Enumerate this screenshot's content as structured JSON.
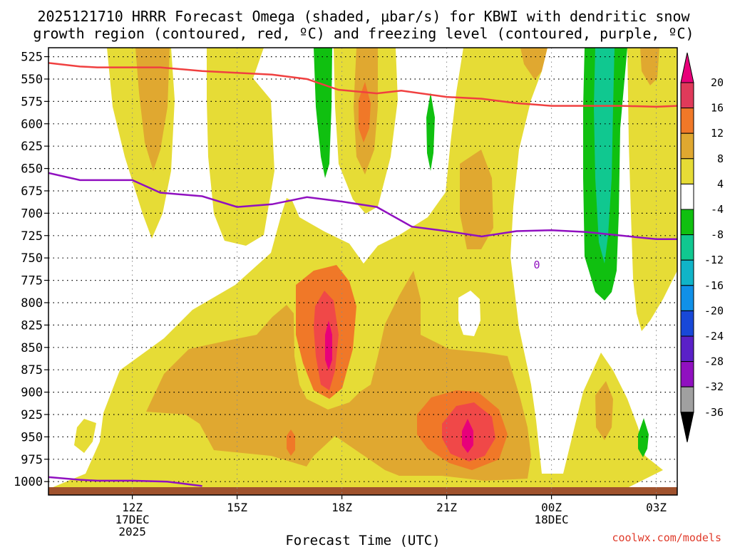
{
  "chart_data": {
    "type": "heatmap",
    "title_lines": [
      "2025121710 HRRR Forecast Omega (shaded, μbar/s) for KBWI with dendritic snow",
      "growth region (contoured, red, ºC) and freezing level (contoured, purple, ºC)"
    ],
    "xlabel": "Forecast Time (UTC)",
    "credit": "coolwx.com/models",
    "x_range_hours": [
      9.6,
      27.6
    ],
    "y_range_hpa": [
      515,
      1015
    ],
    "pressure_levels": [
      525,
      550,
      575,
      600,
      625,
      650,
      675,
      700,
      725,
      750,
      775,
      800,
      825,
      850,
      875,
      900,
      925,
      950,
      975,
      1000
    ],
    "x_ticks": [
      {
        "hour": 12,
        "lines": [
          "12Z",
          "17DEC",
          "2025"
        ]
      },
      {
        "hour": 15,
        "lines": [
          "15Z"
        ]
      },
      {
        "hour": 18,
        "lines": [
          "18Z"
        ]
      },
      {
        "hour": 21,
        "lines": [
          "21Z"
        ]
      },
      {
        "hour": 24,
        "lines": [
          "00Z",
          "18DEC"
        ]
      },
      {
        "hour": 27,
        "lines": [
          "03Z"
        ]
      }
    ],
    "colorbar": {
      "labels": [
        "20",
        "16",
        "12",
        "8",
        "4",
        "-4",
        "-8",
        "-12",
        "-16",
        "-20",
        "-24",
        "-28",
        "-32",
        "-36"
      ],
      "colors": [
        "#e03a5a",
        "#f07828",
        "#e0a830",
        "#e6dc36",
        "#ffffff",
        "#10c010",
        "#10c890",
        "#10b4c8",
        "#1090e8",
        "#1848d8",
        "#5a20c8",
        "#9010c0",
        "#a0a0a0"
      ],
      "max_color": "#e8007a",
      "min_color": "#000000"
    },
    "colors": {
      "omega_4_8": "#e6dc36",
      "omega_8_12": "#e0a830",
      "omega_12_16": "#f07828",
      "omega_16_20": "#f04848",
      "omega_gt20": "#e8007a",
      "omega_m4_m8": "#10c010",
      "omega_m8_m12": "#10c890",
      "dendritic_line": "#f04040",
      "freezing_line": "#9010c0",
      "ground": "#a0522d"
    },
    "dendritic_snow_growth_contour": {
      "hours": [
        9.6,
        10.5,
        11,
        12,
        12.8,
        14,
        15,
        16,
        17,
        17.9,
        19,
        19.7,
        21,
        22,
        23,
        24,
        25,
        26,
        27,
        27.6
      ],
      "pressure": [
        532,
        536,
        537,
        537,
        537,
        541,
        543,
        545,
        550,
        562,
        566,
        563,
        570,
        572,
        577,
        580,
        580,
        580,
        581,
        580
      ]
    },
    "freezing_level_contour": {
      "label": "0",
      "upper": {
        "hours": [
          9.6,
          10.5,
          11,
          12,
          12.8,
          14,
          15,
          16,
          17,
          18,
          19,
          20,
          21,
          22,
          23,
          24,
          25,
          26,
          27,
          27.6
        ],
        "pressure": [
          655,
          663,
          663,
          663,
          677,
          681,
          693,
          690,
          682,
          687,
          693,
          715,
          720,
          726,
          720,
          719,
          721,
          725,
          729,
          729
        ]
      },
      "lower": {
        "hours": [
          9.6,
          10.5,
          11,
          12,
          13,
          14
        ],
        "pressure": [
          995,
          998,
          999,
          999,
          1000,
          1005
        ]
      }
    }
  }
}
